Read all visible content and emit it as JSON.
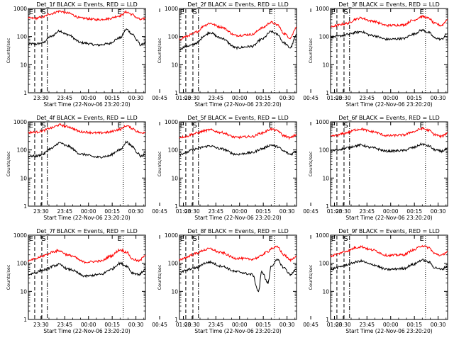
{
  "colors": {
    "events": "#000000",
    "lld": "#ff0000",
    "axis": "#000000",
    "background": "#ffffff"
  },
  "common": {
    "xlabel": "Start Time (22-Nov-06 23:20:20)",
    "ylabel": "Counts/sec",
    "yticks": [
      "1",
      "10",
      "100",
      "1000"
    ],
    "xticks": [
      "23:30",
      "23:45",
      "00:00",
      "00:15",
      "00:30",
      "00:45",
      "01:00"
    ],
    "markers": {
      "eclipse_start": "E",
      "saa": "S",
      "eclipse_end": "E"
    }
  },
  "chart_data": [
    {
      "type": "line",
      "title": "Det_1f BLACK = Events, RED = LLD",
      "xlabel": "Start Time (22-Nov-06 23:20:20)",
      "ylabel": "Counts/sec",
      "y_scale": "log",
      "ylim": [
        1,
        1000
      ],
      "xlim_minutes": [
        -14,
        60
      ],
      "xtick_labels": [
        "23:30",
        "23:45",
        "00:00",
        "00:15",
        "00:30",
        "00:45",
        "01:00"
      ],
      "series": [
        {
          "name": "Events",
          "color": "#000000",
          "x": [
            -14,
            -9,
            -5,
            0,
            6,
            10,
            20,
            30,
            36,
            44,
            48,
            52,
            55,
            57,
            60
          ],
          "y": [
            55,
            55,
            60,
            100,
            160,
            120,
            60,
            50,
            55,
            90,
            180,
            120,
            70,
            50,
            60
          ]
        },
        {
          "name": "LLD",
          "color": "#ff0000",
          "x": [
            -14,
            -9,
            -5,
            0,
            6,
            10,
            20,
            30,
            36,
            44,
            48,
            52,
            55,
            57,
            60
          ],
          "y": [
            450,
            450,
            500,
            650,
            800,
            700,
            450,
            400,
            430,
            550,
            750,
            600,
            450,
            400,
            450
          ]
        }
      ]
    },
    {
      "type": "line",
      "title": "Det_2f BLACK = Events, RED = LLD",
      "xlabel": "Start Time (22-Nov-06 23:20:20)",
      "ylabel": "Counts/sec",
      "y_scale": "log",
      "ylim": [
        1,
        1000
      ],
      "xlim_minutes": [
        -14,
        60
      ],
      "xtick_labels": [
        "23:30",
        "23:45",
        "00:00",
        "00:15",
        "00:30",
        "00:45",
        "01:00"
      ],
      "series": [
        {
          "name": "Events",
          "color": "#000000",
          "x": [
            -14,
            -10,
            -6,
            -3,
            2,
            5,
            12,
            22,
            32,
            38,
            44,
            48,
            52,
            56,
            60
          ],
          "y": [
            35,
            45,
            50,
            60,
            110,
            140,
            90,
            40,
            45,
            80,
            150,
            120,
            60,
            40,
            110
          ]
        },
        {
          "name": "LLD",
          "color": "#ff0000",
          "x": [
            -14,
            -10,
            -6,
            -3,
            2,
            5,
            12,
            22,
            32,
            38,
            44,
            48,
            52,
            56,
            60
          ],
          "y": [
            80,
            100,
            120,
            150,
            250,
            300,
            220,
            110,
            120,
            200,
            320,
            260,
            130,
            90,
            220
          ]
        }
      ]
    },
    {
      "type": "line",
      "title": "Det_3f BLACK = Events, RED = LLD",
      "xlabel": "Start Time (22-Nov-06 23:20:20)",
      "ylabel": "Counts/sec",
      "y_scale": "log",
      "ylim": [
        1,
        1000
      ],
      "xlim_minutes": [
        -14,
        60
      ],
      "xtick_labels": [
        "23:30",
        "23:45",
        "00:00",
        "00:15",
        "00:30",
        "00:45",
        "01:00"
      ],
      "series": [
        {
          "name": "Events",
          "color": "#000000",
          "x": [
            -14,
            -10,
            -6,
            -3,
            2,
            5,
            12,
            22,
            32,
            38,
            44,
            48,
            52,
            56,
            60
          ],
          "y": [
            95,
            100,
            110,
            120,
            140,
            150,
            110,
            80,
            85,
            120,
            170,
            140,
            90,
            80,
            130
          ]
        },
        {
          "name": "LLD",
          "color": "#ff0000",
          "x": [
            -14,
            -10,
            -6,
            -3,
            2,
            5,
            12,
            22,
            32,
            38,
            44,
            48,
            52,
            56,
            60
          ],
          "y": [
            220,
            250,
            280,
            300,
            420,
            460,
            360,
            250,
            260,
            380,
            520,
            450,
            290,
            250,
            400
          ]
        }
      ]
    },
    {
      "type": "line",
      "title": "Det_4f BLACK = Events, RED = LLD",
      "xlabel": "Start Time (22-Nov-06 23:20:20)",
      "ylabel": "Counts/sec",
      "y_scale": "log",
      "ylim": [
        1,
        1000
      ],
      "xlim_minutes": [
        -14,
        60
      ],
      "xtick_labels": [
        "23:30",
        "23:45",
        "00:00",
        "00:15",
        "00:30",
        "00:45",
        "01:00"
      ],
      "series": [
        {
          "name": "Events",
          "color": "#000000",
          "x": [
            -14,
            -9,
            -5,
            0,
            6,
            10,
            20,
            30,
            36,
            44,
            48,
            52,
            55,
            57,
            60
          ],
          "y": [
            60,
            60,
            70,
            110,
            180,
            140,
            70,
            55,
            60,
            100,
            190,
            130,
            80,
            60,
            70
          ]
        },
        {
          "name": "LLD",
          "color": "#ff0000",
          "x": [
            -14,
            -9,
            -5,
            0,
            6,
            10,
            20,
            30,
            36,
            44,
            48,
            52,
            55,
            57,
            60
          ],
          "y": [
            420,
            430,
            480,
            600,
            780,
            680,
            440,
            400,
            420,
            540,
            720,
            580,
            450,
            400,
            430
          ]
        }
      ]
    },
    {
      "type": "line",
      "title": "Det_5f BLACK = Events, RED = LLD",
      "xlabel": "Start Time (22-Nov-06 23:20:20)",
      "ylabel": "Counts/sec",
      "y_scale": "log",
      "ylim": [
        1,
        1000
      ],
      "xlim_minutes": [
        -14,
        60
      ],
      "xtick_labels": [
        "23:30",
        "23:45",
        "00:00",
        "00:15",
        "00:30",
        "00:45",
        "01:00"
      ],
      "series": [
        {
          "name": "Events",
          "color": "#000000",
          "x": [
            -14,
            -10,
            -6,
            -3,
            2,
            5,
            12,
            22,
            32,
            38,
            44,
            48,
            52,
            56,
            60
          ],
          "y": [
            70,
            80,
            100,
            110,
            130,
            140,
            110,
            70,
            80,
            110,
            150,
            130,
            90,
            70,
            90
          ]
        },
        {
          "name": "LLD",
          "color": "#ff0000",
          "x": [
            -14,
            -10,
            -6,
            -3,
            2,
            5,
            12,
            22,
            32,
            38,
            44,
            48,
            52,
            56,
            60
          ],
          "y": [
            280,
            300,
            360,
            400,
            480,
            520,
            420,
            280,
            300,
            400,
            550,
            480,
            320,
            270,
            350
          ]
        }
      ]
    },
    {
      "type": "line",
      "title": "Det_6f BLACK = Events, RED = LLD",
      "xlabel": "Start Time (22-Nov-06 23:20:20)",
      "ylabel": "Counts/sec",
      "y_scale": "log",
      "ylim": [
        1,
        1000
      ],
      "xlim_minutes": [
        -14,
        60
      ],
      "xtick_labels": [
        "23:30",
        "23:45",
        "00:00",
        "00:15",
        "00:30",
        "00:45",
        "01:00"
      ],
      "series": [
        {
          "name": "Events",
          "color": "#000000",
          "x": [
            -14,
            -10,
            -6,
            -3,
            2,
            5,
            12,
            22,
            32,
            38,
            44,
            48,
            52,
            56,
            60
          ],
          "y": [
            90,
            100,
            110,
            120,
            140,
            150,
            120,
            90,
            95,
            120,
            160,
            140,
            100,
            90,
            110
          ]
        },
        {
          "name": "LLD",
          "color": "#ff0000",
          "x": [
            -14,
            -10,
            -6,
            -3,
            2,
            5,
            12,
            22,
            32,
            38,
            44,
            48,
            52,
            56,
            60
          ],
          "y": [
            300,
            330,
            380,
            420,
            520,
            560,
            450,
            320,
            340,
            440,
            580,
            500,
            350,
            300,
            400
          ]
        }
      ]
    },
    {
      "type": "line",
      "title": "Det_7f BLACK = Events, RED = LLD",
      "xlabel": "Start Time (22-Nov-06 23:20:20)",
      "ylabel": "Counts/sec",
      "y_scale": "log",
      "ylim": [
        1,
        1000
      ],
      "xlim_minutes": [
        -14,
        60
      ],
      "xtick_labels": [
        "23:30",
        "23:45",
        "00:00",
        "00:15",
        "00:30",
        "00:45",
        "01:00"
      ],
      "series": [
        {
          "name": "Events",
          "color": "#000000",
          "x": [
            -14,
            -10,
            -6,
            -3,
            2,
            5,
            12,
            22,
            32,
            38,
            44,
            48,
            52,
            56,
            60
          ],
          "y": [
            40,
            45,
            55,
            60,
            80,
            90,
            60,
            35,
            40,
            60,
            100,
            80,
            45,
            40,
            60
          ]
        },
        {
          "name": "LLD",
          "color": "#ff0000",
          "x": [
            -14,
            -10,
            -6,
            -3,
            2,
            5,
            12,
            22,
            32,
            38,
            44,
            48,
            52,
            56,
            60
          ],
          "y": [
            120,
            140,
            170,
            200,
            260,
            280,
            190,
            110,
            120,
            180,
            300,
            250,
            140,
            120,
            200
          ]
        }
      ]
    },
    {
      "type": "line",
      "title": "Det_8f BLACK = Events, RED = LLD",
      "xlabel": "Start Time (22-Nov-06 23:20:20)",
      "ylabel": "Counts/sec",
      "y_scale": "log",
      "ylim": [
        1,
        1000
      ],
      "xlim_minutes": [
        -14,
        60
      ],
      "xtick_labels": [
        "23:30",
        "23:45",
        "00:00",
        "00:15",
        "00:30",
        "00:45",
        "01:00"
      ],
      "series": [
        {
          "name": "Events",
          "color": "#000000",
          "x": [
            -14,
            -10,
            -6,
            -3,
            2,
            5,
            12,
            22,
            32,
            36,
            38,
            42,
            44,
            48,
            52,
            56,
            60
          ],
          "y": [
            45,
            55,
            65,
            70,
            100,
            110,
            80,
            50,
            40,
            10,
            50,
            20,
            80,
            130,
            70,
            40,
            60
          ]
        },
        {
          "name": "LLD",
          "color": "#ff0000",
          "x": [
            -14,
            -10,
            -6,
            -3,
            2,
            5,
            12,
            22,
            32,
            36,
            38,
            42,
            44,
            48,
            52,
            56,
            60
          ],
          "y": [
            130,
            160,
            200,
            230,
            300,
            330,
            240,
            150,
            140,
            160,
            200,
            260,
            340,
            380,
            200,
            130,
            180
          ]
        }
      ]
    },
    {
      "type": "line",
      "title": "Det_9f BLACK = Events, RED = LLD",
      "xlabel": "Start Time (22-Nov-06 23:20:20)",
      "ylabel": "Counts/sec",
      "y_scale": "log",
      "ylim": [
        1,
        1000
      ],
      "xlim_minutes": [
        -14,
        60
      ],
      "xtick_labels": [
        "23:30",
        "23:45",
        "00:00",
        "00:15",
        "00:30",
        "00:45",
        "01:00"
      ],
      "series": [
        {
          "name": "Events",
          "color": "#000000",
          "x": [
            -14,
            -10,
            -6,
            -3,
            2,
            5,
            12,
            22,
            32,
            38,
            44,
            48,
            52,
            56,
            60
          ],
          "y": [
            60,
            70,
            80,
            90,
            110,
            120,
            90,
            60,
            65,
            90,
            130,
            110,
            70,
            60,
            80
          ]
        },
        {
          "name": "LLD",
          "color": "#ff0000",
          "x": [
            -14,
            -10,
            -6,
            -3,
            2,
            5,
            12,
            22,
            32,
            38,
            44,
            48,
            52,
            56,
            60
          ],
          "y": [
            180,
            210,
            250,
            280,
            360,
            390,
            300,
            190,
            200,
            290,
            420,
            360,
            220,
            190,
            260
          ]
        }
      ]
    }
  ]
}
